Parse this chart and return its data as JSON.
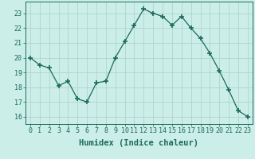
{
  "x": [
    0,
    1,
    2,
    3,
    4,
    5,
    6,
    7,
    8,
    9,
    10,
    11,
    12,
    13,
    14,
    15,
    16,
    17,
    18,
    19,
    20,
    21,
    22,
    23
  ],
  "y": [
    20.0,
    19.5,
    19.3,
    18.1,
    18.4,
    17.2,
    17.0,
    18.3,
    18.4,
    20.0,
    21.1,
    22.2,
    23.3,
    23.0,
    22.8,
    22.2,
    22.8,
    22.0,
    21.3,
    20.3,
    19.1,
    17.8,
    16.4,
    16.0
  ],
  "line_color": "#1a6b5a",
  "marker": "+",
  "marker_size": 4,
  "bg_color": "#cceee8",
  "grid_color": "#b0d4cc",
  "xlabel": "Humidex (Indice chaleur)",
  "ylim": [
    15.5,
    23.8
  ],
  "xlim": [
    -0.5,
    23.5
  ],
  "yticks": [
    16,
    17,
    18,
    19,
    20,
    21,
    22,
    23
  ],
  "xticks": [
    0,
    1,
    2,
    3,
    4,
    5,
    6,
    7,
    8,
    9,
    10,
    11,
    12,
    13,
    14,
    15,
    16,
    17,
    18,
    19,
    20,
    21,
    22,
    23
  ],
  "tick_label_fontsize": 6.0,
  "xlabel_fontsize": 7.5
}
